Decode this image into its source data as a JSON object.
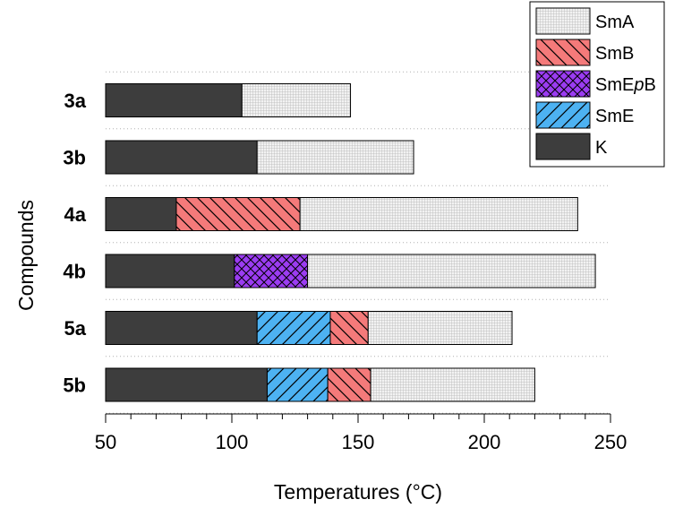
{
  "chart_data": {
    "type": "bar",
    "orientation": "horizontal",
    "stacked": true,
    "title": "",
    "xlabel": "Temperatures (°C)",
    "ylabel": "Compounds",
    "xlim": [
      50,
      250
    ],
    "xticks": [
      50,
      100,
      150,
      200,
      250
    ],
    "categories": [
      "3a",
      "3b",
      "4a",
      "4b",
      "5a",
      "5b"
    ],
    "legend_position": "top-right",
    "grid": "dotted horizontal",
    "phases": [
      {
        "key": "SmA",
        "name": "SmA",
        "color": "#e8e8e8",
        "pattern": "crosshatch-fine"
      },
      {
        "key": "SmB",
        "name": "SmB",
        "color": "#f47a7a",
        "pattern": "diagonal-down"
      },
      {
        "key": "SmEpB",
        "name_parts": [
          "SmE",
          "p",
          "B"
        ],
        "color": "#9b3cf2",
        "pattern": "crosshatch"
      },
      {
        "key": "SmE",
        "name": "SmE",
        "color": "#4db2f2",
        "pattern": "diagonal-up"
      },
      {
        "key": "K",
        "name": "K",
        "color": "#3d3d3d",
        "pattern": "solid"
      }
    ],
    "series": [
      {
        "category": "3a",
        "segments": [
          {
            "phase": "K",
            "from": 50,
            "to": 104
          },
          {
            "phase": "SmA",
            "from": 104,
            "to": 147
          }
        ]
      },
      {
        "category": "3b",
        "segments": [
          {
            "phase": "K",
            "from": 50,
            "to": 110
          },
          {
            "phase": "SmA",
            "from": 110,
            "to": 172
          }
        ]
      },
      {
        "category": "4a",
        "segments": [
          {
            "phase": "K",
            "from": 50,
            "to": 78
          },
          {
            "phase": "SmB",
            "from": 78,
            "to": 127
          },
          {
            "phase": "SmA",
            "from": 127,
            "to": 237
          }
        ]
      },
      {
        "category": "4b",
        "segments": [
          {
            "phase": "K",
            "from": 50,
            "to": 101
          },
          {
            "phase": "SmEpB",
            "from": 101,
            "to": 130
          },
          {
            "phase": "SmA",
            "from": 130,
            "to": 244
          }
        ]
      },
      {
        "category": "5a",
        "segments": [
          {
            "phase": "K",
            "from": 50,
            "to": 110
          },
          {
            "phase": "SmE",
            "from": 110,
            "to": 139
          },
          {
            "phase": "SmB",
            "from": 139,
            "to": 154
          },
          {
            "phase": "SmA",
            "from": 154,
            "to": 211
          }
        ]
      },
      {
        "category": "5b",
        "segments": [
          {
            "phase": "K",
            "from": 50,
            "to": 114
          },
          {
            "phase": "SmE",
            "from": 114,
            "to": 138
          },
          {
            "phase": "SmB",
            "from": 138,
            "to": 155
          },
          {
            "phase": "SmA",
            "from": 155,
            "to": 220
          }
        ]
      }
    ]
  }
}
